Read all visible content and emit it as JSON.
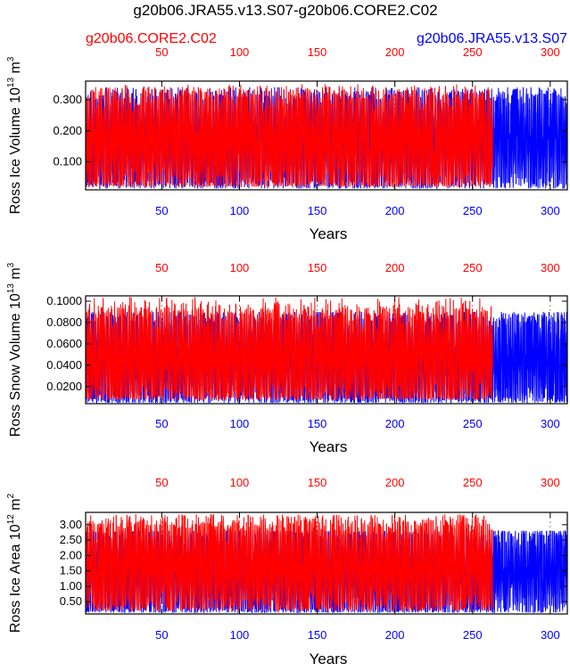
{
  "title": "g20b06.JRA55.v13.S07-g20b06.CORE2.C02",
  "legend": {
    "left": "g20b06.CORE2.C02",
    "right": "g20b06.JRA55.v13.S07"
  },
  "colors": {
    "core": "#ff0000",
    "jra": "#0000ff",
    "axis": "#000000",
    "grid": "#888888"
  },
  "chart_data": [
    {
      "type": "line",
      "title": "Ross Ice Volume",
      "ylabel_main": "Ross Ice Volume 10",
      "ylabel_exp": "13",
      "ylabel_unit": " m",
      "ylabel_unit_exp": "3",
      "xlabel": "Years",
      "xlim": [
        1,
        311
      ],
      "ylim": [
        0.01,
        0.36
      ],
      "yticks": [
        0.1,
        0.2,
        0.3
      ],
      "ytick_labels": [
        "0.100",
        "0.200",
        "0.300"
      ],
      "xticks": [
        50,
        100,
        150,
        200,
        250,
        300
      ],
      "xtick_labels": [
        "50",
        "100",
        "150",
        "200",
        "250",
        "300"
      ],
      "series": [
        {
          "name": "g20b06.CORE2.C02",
          "years": [
            1,
            262
          ],
          "low": 0.04,
          "high": 0.3,
          "peak": 0.35,
          "floor": 0.02
        },
        {
          "name": "g20b06.JRA55.v13.S07",
          "years": [
            1,
            311
          ],
          "low": 0.04,
          "high": 0.3,
          "peak": 0.34,
          "floor": 0.015
        }
      ]
    },
    {
      "type": "line",
      "title": "Ross Snow Volume",
      "ylabel_main": "Ross Snow Volume 10",
      "ylabel_exp": "13",
      "ylabel_unit": " m",
      "ylabel_unit_exp": "3",
      "xlabel": "Years",
      "xlim": [
        1,
        311
      ],
      "ylim": [
        0.004,
        0.105
      ],
      "yticks": [
        0.02,
        0.04,
        0.06,
        0.08,
        0.1
      ],
      "ytick_labels": [
        "0.0200",
        "0.0400",
        "0.0600",
        "0.0800",
        "0.1000"
      ],
      "xticks": [
        50,
        100,
        150,
        200,
        250,
        300
      ],
      "xtick_labels": [
        "50",
        "100",
        "150",
        "200",
        "250",
        "300"
      ],
      "series": [
        {
          "name": "g20b06.CORE2.C02",
          "years": [
            1,
            262
          ],
          "low": 0.012,
          "high": 0.085,
          "peak": 0.104,
          "floor": 0.008
        },
        {
          "name": "g20b06.JRA55.v13.S07",
          "years": [
            1,
            311
          ],
          "low": 0.01,
          "high": 0.08,
          "peak": 0.09,
          "floor": 0.005
        }
      ]
    },
    {
      "type": "line",
      "title": "Ross Ice Area",
      "ylabel_main": "Ross Ice Area 10",
      "ylabel_exp": "12",
      "ylabel_unit": " m",
      "ylabel_unit_exp": "2",
      "xlabel": "Years",
      "xlim": [
        1,
        311
      ],
      "ylim": [
        0.1,
        3.4
      ],
      "yticks": [
        0.5,
        1.0,
        1.5,
        2.0,
        2.5,
        3.0
      ],
      "ytick_labels": [
        "0.50",
        "1.00",
        "1.50",
        "2.00",
        "2.50",
        "3.00"
      ],
      "xticks": [
        50,
        100,
        150,
        200,
        250,
        300
      ],
      "xtick_labels": [
        "50",
        "100",
        "150",
        "200",
        "250",
        "300"
      ],
      "series": [
        {
          "name": "g20b06.CORE2.C02",
          "years": [
            1,
            262
          ],
          "low": 0.4,
          "high": 2.9,
          "peak": 3.35,
          "floor": 0.2
        },
        {
          "name": "g20b06.JRA55.v13.S07",
          "years": [
            1,
            311
          ],
          "low": 0.3,
          "high": 2.6,
          "peak": 2.8,
          "floor": 0.15
        }
      ]
    }
  ]
}
